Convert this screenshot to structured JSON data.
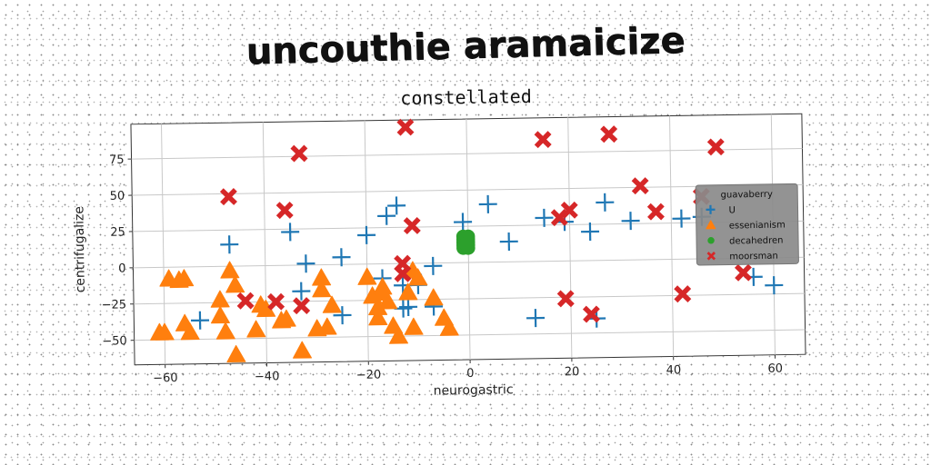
{
  "page_title": "uncouthie aramaicize",
  "chart_data": {
    "type": "scatter",
    "title": "constellated",
    "xlabel": "neurogastric",
    "ylabel": "centrifugalize",
    "xlim": [
      -66,
      66
    ],
    "ylim": [
      -67,
      99
    ],
    "xticks": [
      -60,
      -40,
      -20,
      0,
      20,
      40,
      60
    ],
    "yticks": [
      -50,
      -25,
      0,
      25,
      50,
      75
    ],
    "xtick_labels": [
      "−60",
      "−40",
      "−20",
      "0",
      "20",
      "40",
      "60"
    ],
    "ytick_labels": [
      "−50",
      "−25",
      "0",
      "25",
      "50",
      "75"
    ],
    "grid": true,
    "legend": {
      "title": "guavaberry",
      "position": "right"
    },
    "series": [
      {
        "name": "U",
        "marker": "plus",
        "color": "#1f77b4",
        "points": [
          [
            -47,
            15
          ],
          [
            -35,
            23
          ],
          [
            -32,
            1
          ],
          [
            -33,
            -18
          ],
          [
            -25,
            5
          ],
          [
            -25,
            -35
          ],
          [
            -20,
            20
          ],
          [
            -16,
            33
          ],
          [
            -14,
            40
          ],
          [
            -17,
            -10
          ],
          [
            -13,
            -15
          ],
          [
            -13,
            -31
          ],
          [
            -12,
            -30
          ],
          [
            -11,
            -8
          ],
          [
            -10,
            -15
          ],
          [
            -7,
            -2
          ],
          [
            -7,
            -30
          ],
          [
            -1,
            28
          ],
          [
            4,
            40
          ],
          [
            8,
            14
          ],
          [
            13,
            -39
          ],
          [
            15,
            30
          ],
          [
            19,
            27
          ],
          [
            24,
            20
          ],
          [
            27,
            40
          ],
          [
            32,
            27
          ],
          [
            42,
            28
          ],
          [
            46,
            29
          ],
          [
            25,
            -40
          ],
          [
            56,
            -13
          ],
          [
            60,
            -19
          ],
          [
            -53,
            -37
          ]
        ]
      },
      {
        "name": "essenianism",
        "marker": "triangle",
        "color": "#ff7f0e",
        "points": [
          [
            -61,
            -45
          ],
          [
            -60,
            -45
          ],
          [
            -59,
            -8
          ],
          [
            -57,
            -9
          ],
          [
            -56,
            -8
          ],
          [
            -56,
            -39
          ],
          [
            -55,
            -45
          ],
          [
            -49,
            -23
          ],
          [
            -49,
            -34
          ],
          [
            -48,
            -45
          ],
          [
            -47,
            -3
          ],
          [
            -46,
            -13
          ],
          [
            -46,
            -61
          ],
          [
            -42,
            -44
          ],
          [
            -41,
            -27
          ],
          [
            -40,
            -30
          ],
          [
            -37,
            -38
          ],
          [
            -36,
            -37
          ],
          [
            -33,
            -59
          ],
          [
            -30,
            -44
          ],
          [
            -29,
            -9
          ],
          [
            -29,
            -17
          ],
          [
            -28,
            -43
          ],
          [
            -27,
            -28
          ],
          [
            -20,
            -9
          ],
          [
            -19,
            -22
          ],
          [
            -18,
            -30
          ],
          [
            -18,
            -37
          ],
          [
            -17,
            -16
          ],
          [
            -17,
            -20
          ],
          [
            -16,
            -26
          ],
          [
            -15,
            -43
          ],
          [
            -14,
            -50
          ],
          [
            -12,
            -20
          ],
          [
            -11,
            -44
          ],
          [
            -11,
            -5
          ],
          [
            -10,
            -10
          ],
          [
            -7,
            -24
          ],
          [
            -5,
            -38
          ],
          [
            -4,
            -45
          ]
        ]
      },
      {
        "name": "decahedren",
        "marker": "circle",
        "color": "#2ca02c",
        "points": [
          [
            -1,
            18
          ],
          [
            -1,
            16
          ],
          [
            -1,
            14
          ],
          [
            -1,
            12
          ],
          [
            -1,
            10
          ],
          [
            0,
            18
          ],
          [
            0,
            16
          ],
          [
            0,
            14
          ],
          [
            0,
            12
          ],
          [
            0,
            10
          ],
          [
            -0.5,
            17
          ],
          [
            -0.5,
            13
          ]
        ]
      },
      {
        "name": "moorsman",
        "marker": "x",
        "color": "#d62728",
        "points": [
          [
            -47,
            48
          ],
          [
            -44,
            -24
          ],
          [
            -38,
            -25
          ],
          [
            -36,
            38
          ],
          [
            -33,
            -28
          ],
          [
            -33,
            77
          ],
          [
            -12,
            94
          ],
          [
            -11,
            26
          ],
          [
            -13,
            0
          ],
          [
            -13,
            -7
          ],
          [
            15,
            84
          ],
          [
            18,
            30
          ],
          [
            20,
            35
          ],
          [
            19,
            -26
          ],
          [
            24,
            -37
          ],
          [
            28,
            87
          ],
          [
            34,
            51
          ],
          [
            37,
            33
          ],
          [
            42,
            -24
          ],
          [
            46,
            43
          ],
          [
            49,
            77
          ],
          [
            54,
            -10
          ]
        ]
      }
    ]
  }
}
